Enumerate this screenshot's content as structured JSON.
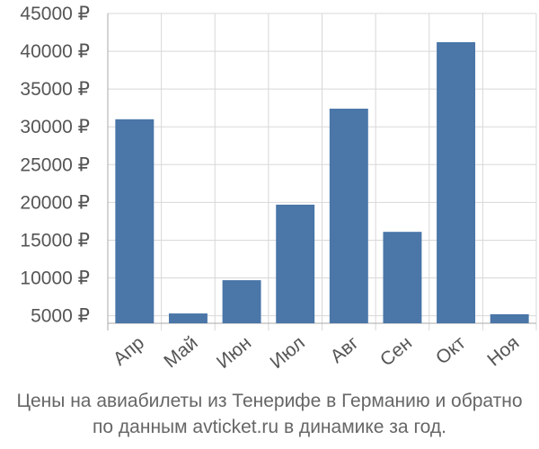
{
  "caption": {
    "line1": "Цены на авиабилеты из Тенерифе в Германию и обратно",
    "line2": "по данным avticket.ru в динамике за год."
  },
  "colors": {
    "bar": "#4a76a8",
    "grid": "#d8d8d8",
    "axis": "#aaaaaa",
    "text": "#555555"
  },
  "chart_data": {
    "type": "bar",
    "categories": [
      "Апр",
      "Май",
      "Июн",
      "Июл",
      "Авг",
      "Сен",
      "Окт",
      "Ноя"
    ],
    "values": [
      31000,
      5300,
      9700,
      19700,
      32400,
      16100,
      41200,
      5200
    ],
    "ylim": [
      4000,
      45000
    ],
    "yticks": [
      5000,
      10000,
      15000,
      20000,
      25000,
      30000,
      35000,
      40000,
      45000
    ],
    "ytick_labels": [
      "5000 ₽",
      "10000 ₽",
      "15000 ₽",
      "20000 ₽",
      "25000 ₽",
      "30000 ₽",
      "35000 ₽",
      "40000 ₽",
      "45000 ₽"
    ],
    "grid": true,
    "title": "",
    "xlabel": "",
    "ylabel": ""
  }
}
